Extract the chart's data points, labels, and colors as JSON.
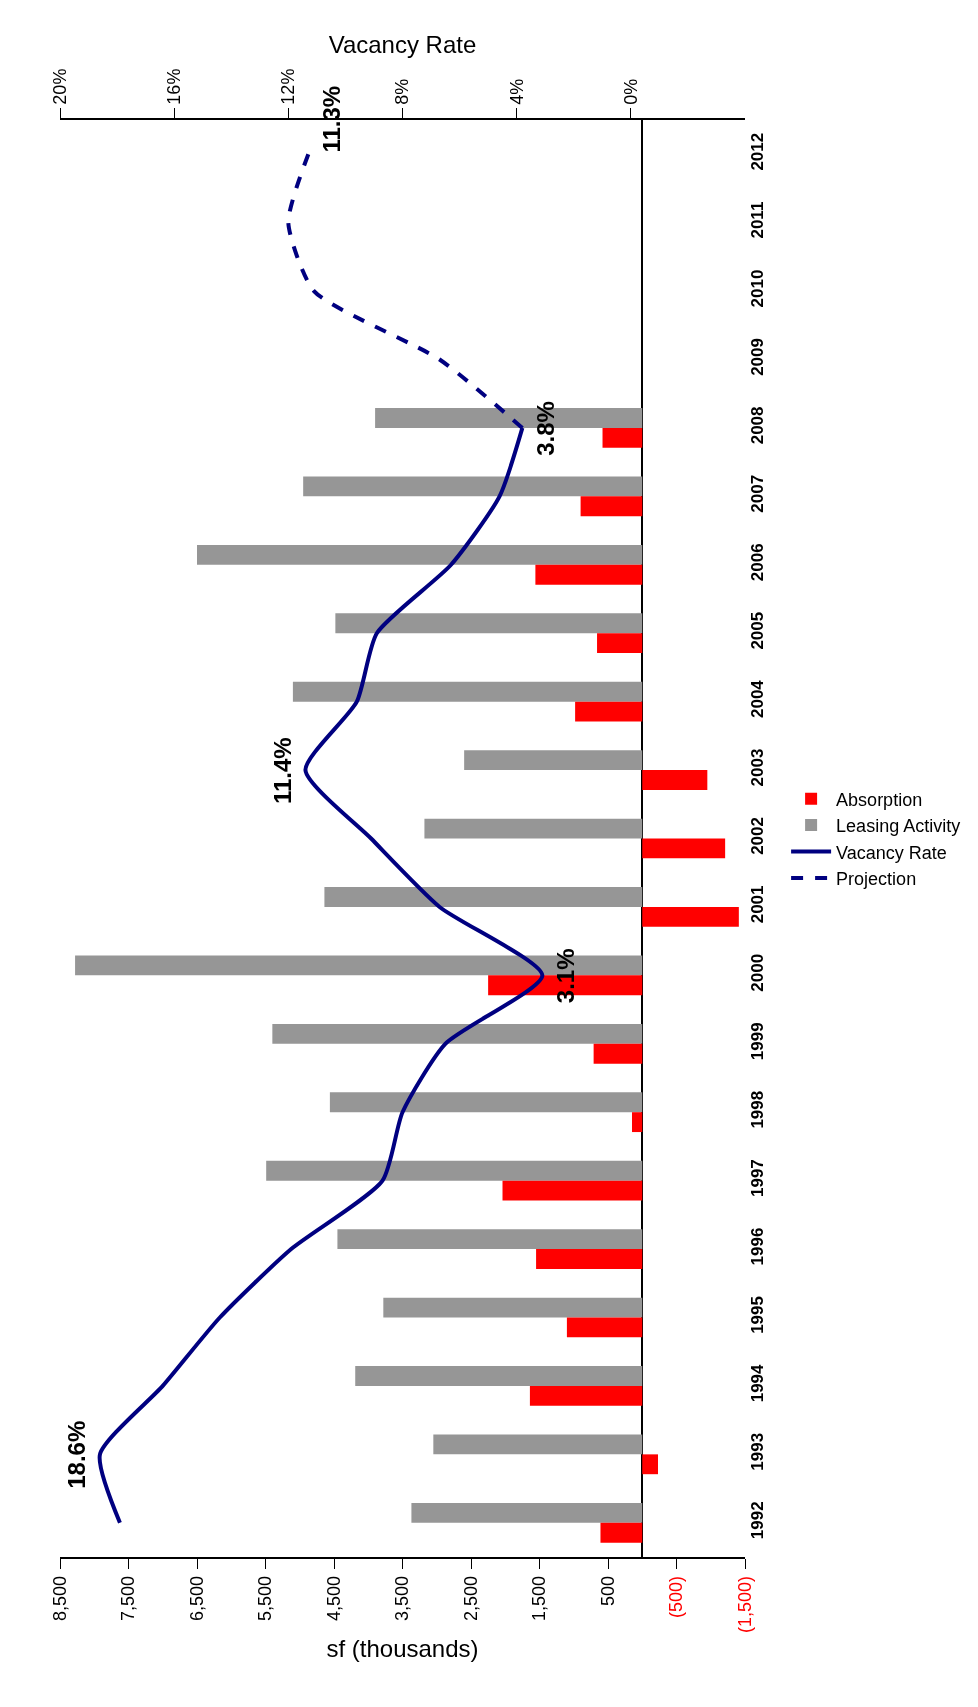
{
  "chart_data": {
    "type": "bar",
    "orientation": "horizontal",
    "xlabel": "sf (thousands)",
    "x2label": "Vacancy Rate",
    "categories": [
      "2012",
      "2011",
      "2010",
      "2009",
      "2008",
      "2007",
      "2006",
      "2005",
      "2004",
      "2003",
      "2002",
      "2001",
      "2000",
      "1999",
      "1998",
      "1997",
      "1996",
      "1995",
      "1994",
      "1993",
      "1992"
    ],
    "series": [
      {
        "name": "Absorption",
        "color": "#ff0000",
        "values": [
          null,
          null,
          null,
          null,
          580,
          900,
          1560,
          660,
          980,
          -950,
          -1210,
          -1410,
          2250,
          710,
          150,
          2040,
          1550,
          1100,
          1640,
          -230,
          610
        ]
      },
      {
        "name": "Leasing Activity",
        "color": "#969696",
        "values": [
          null,
          null,
          null,
          null,
          3900,
          4950,
          6500,
          4480,
          5100,
          2600,
          3180,
          4640,
          8280,
          5400,
          4560,
          5490,
          4450,
          3780,
          4190,
          3050,
          3370
        ]
      },
      {
        "name": "Vacancy Rate",
        "type": "line",
        "axis": "x2",
        "color": "#000080",
        "line_style": "solid",
        "values": [
          null,
          null,
          null,
          null,
          3.8,
          4.6,
          6.3,
          8.9,
          9.6,
          11.4,
          9.1,
          6.7,
          3.1,
          6.5,
          8.0,
          8.7,
          11.9,
          14.4,
          16.4,
          18.6,
          17.9
        ],
        "value_labels": [
          null,
          null,
          null,
          null,
          "3.8%",
          null,
          null,
          null,
          null,
          "11.4%",
          null,
          null,
          "3.1%",
          null,
          null,
          null,
          null,
          null,
          null,
          "18.6%",
          null
        ]
      },
      {
        "name": "Projection",
        "type": "line",
        "axis": "x2",
        "color": "#000080",
        "line_style": "dashed",
        "values": [
          11.3,
          12.0,
          11.1,
          6.7,
          3.8,
          null,
          null,
          null,
          null,
          null,
          null,
          null,
          null,
          null,
          null,
          null,
          null,
          null,
          null,
          null,
          null
        ],
        "value_labels": [
          "11.3%",
          null,
          null,
          null,
          null,
          null,
          null,
          null,
          null,
          null,
          null,
          null,
          null,
          null,
          null,
          null,
          null,
          null,
          null,
          null,
          null
        ]
      }
    ],
    "xlim": [
      8500,
      -1500
    ],
    "xticks": [
      {
        "value": 8500,
        "label": "8,500"
      },
      {
        "value": 7500,
        "label": "7,500"
      },
      {
        "value": 6500,
        "label": "6,500"
      },
      {
        "value": 5500,
        "label": "5,500"
      },
      {
        "value": 4500,
        "label": "4,500"
      },
      {
        "value": 3500,
        "label": "3,500"
      },
      {
        "value": 2500,
        "label": "2,500"
      },
      {
        "value": 1500,
        "label": "1,500"
      },
      {
        "value": 500,
        "label": "500"
      },
      {
        "value": -500,
        "label": "(500)"
      },
      {
        "value": -1500,
        "label": "(1,500)"
      }
    ],
    "x2lim": [
      20,
      -4
    ],
    "x2ticks": [
      {
        "value": 20,
        "label": "20%"
      },
      {
        "value": 16,
        "label": "16%"
      },
      {
        "value": 12,
        "label": "12%"
      },
      {
        "value": 8,
        "label": "8%"
      },
      {
        "value": 4,
        "label": "4%"
      },
      {
        "value": 0,
        "label": "0%"
      }
    ],
    "legend": "right",
    "marker": "none"
  }
}
